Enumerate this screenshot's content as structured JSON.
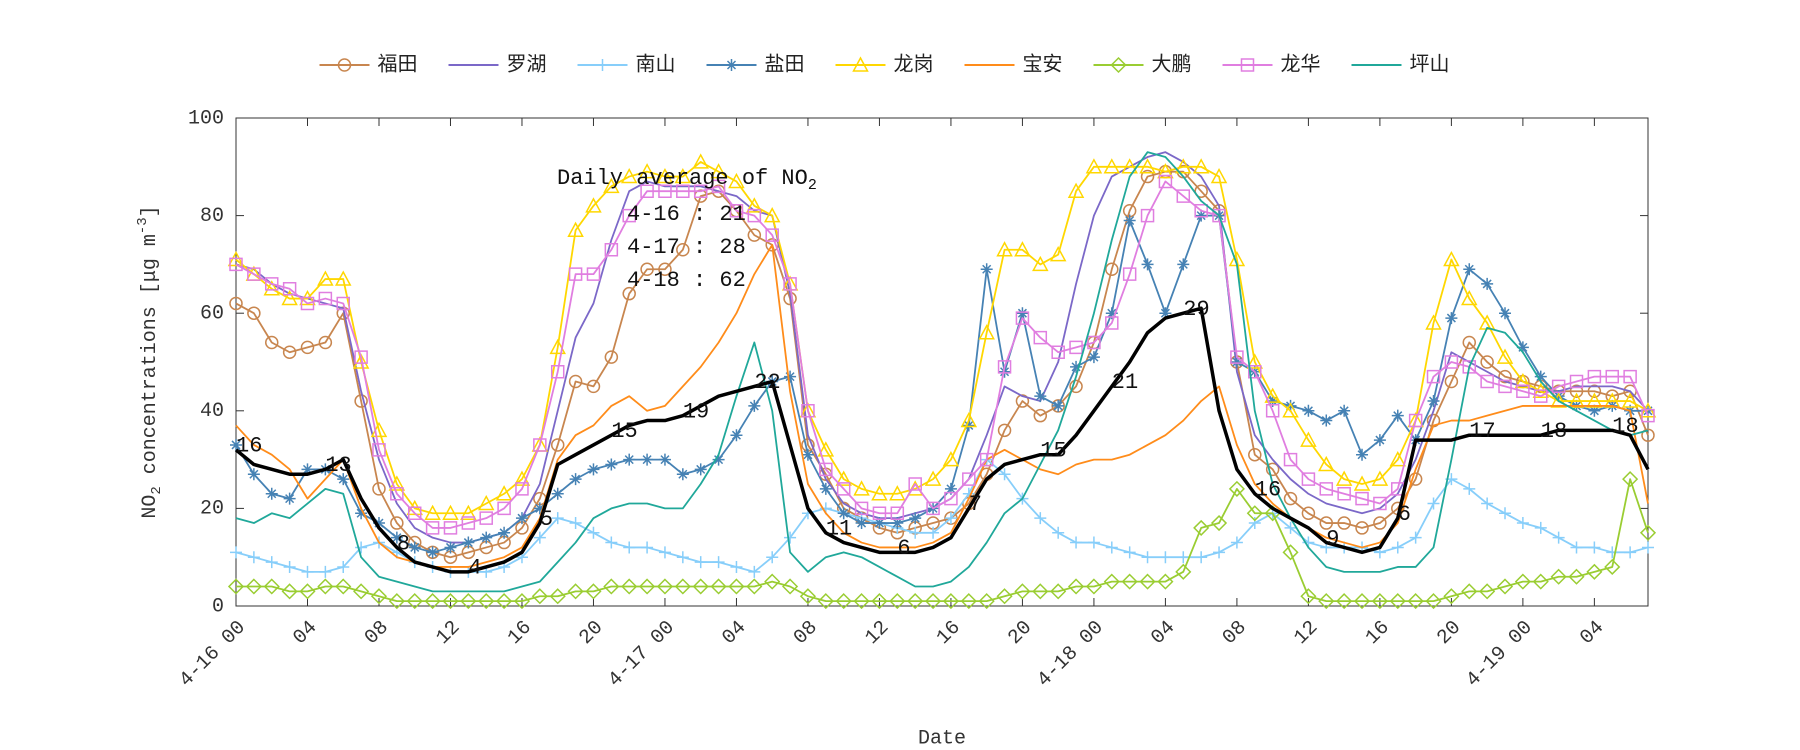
{
  "chart_data": {
    "type": "line",
    "xlabel": "Date",
    "ylabel": {
      "main": "NO",
      "sub": "2",
      "mid": " concentrations [μg m",
      "sup": "-3",
      "end": "]"
    },
    "box_title": {
      "main": "Daily average of NO",
      "sub": "2"
    },
    "box_lines": [
      "4-16 : 21",
      "4-17 : 28",
      "4-18 : 62"
    ],
    "legend": "top",
    "grid": false,
    "xlim": [
      0,
      79
    ],
    "ylim": [
      0,
      100
    ],
    "yticks": [
      0,
      20,
      40,
      60,
      80,
      100
    ],
    "xticks": [
      {
        "value": 0,
        "label": "4-16 00"
      },
      {
        "value": 4,
        "label": "04"
      },
      {
        "value": 8,
        "label": "08"
      },
      {
        "value": 12,
        "label": "12"
      },
      {
        "value": 16,
        "label": "16"
      },
      {
        "value": 20,
        "label": "20"
      },
      {
        "value": 24,
        "label": "4-17 00"
      },
      {
        "value": 28,
        "label": "04"
      },
      {
        "value": 32,
        "label": "08"
      },
      {
        "value": 36,
        "label": "12"
      },
      {
        "value": 40,
        "label": "16"
      },
      {
        "value": 44,
        "label": "20"
      },
      {
        "value": 48,
        "label": "4-18 00"
      },
      {
        "value": 52,
        "label": "04"
      },
      {
        "value": 56,
        "label": "08"
      },
      {
        "value": 60,
        "label": "12"
      },
      {
        "value": 64,
        "label": "16"
      },
      {
        "value": 68,
        "label": "20"
      },
      {
        "value": 72,
        "label": "4-19 00"
      },
      {
        "value": 76,
        "label": "04"
      }
    ],
    "x": [
      0,
      1,
      2,
      3,
      4,
      5,
      6,
      7,
      8,
      9,
      10,
      11,
      12,
      13,
      14,
      15,
      16,
      17,
      18,
      19,
      20,
      21,
      22,
      23,
      24,
      25,
      26,
      27,
      28,
      29,
      30,
      31,
      32,
      33,
      34,
      35,
      36,
      37,
      38,
      39,
      40,
      41,
      42,
      43,
      44,
      45,
      46,
      47,
      48,
      49,
      50,
      51,
      52,
      53,
      54,
      55,
      56,
      57,
      58,
      59,
      60,
      61,
      62,
      63,
      64,
      65,
      66,
      67,
      68,
      69,
      70,
      71,
      72,
      73,
      74,
      75,
      76,
      77,
      78,
      79
    ],
    "series": [
      {
        "name": "福田",
        "color": "#c8864f",
        "marker": "circle",
        "values": [
          62,
          60,
          54,
          52,
          53,
          54,
          60,
          42,
          24,
          17,
          13,
          11,
          10,
          11,
          12,
          13,
          16,
          22,
          33,
          46,
          45,
          51,
          64,
          69,
          69,
          73,
          84,
          85,
          81,
          76,
          74,
          63,
          33,
          27,
          20,
          18,
          16,
          15,
          16,
          17,
          18,
          21,
          27,
          36,
          42,
          39,
          41,
          45,
          54,
          69,
          81,
          88,
          89,
          89,
          85,
          81,
          50,
          31,
          28,
          22,
          19,
          17,
          17,
          16,
          17,
          20,
          26,
          38,
          46,
          54,
          50,
          47,
          46,
          45,
          44,
          44,
          44,
          43,
          44,
          35
        ]
      },
      {
        "name": "罗湖",
        "color": "#7b68c8",
        "marker": "none",
        "values": [
          70,
          69,
          66,
          64,
          63,
          62,
          61,
          44,
          30,
          21,
          16,
          14,
          13,
          13,
          14,
          15,
          18,
          25,
          40,
          55,
          62,
          75,
          85,
          87,
          86,
          86,
          86,
          85,
          84,
          81,
          80,
          64,
          35,
          26,
          21,
          19,
          18,
          18,
          19,
          20,
          22,
          26,
          35,
          45,
          43,
          42,
          50,
          66,
          80,
          88,
          90,
          92,
          93,
          91,
          88,
          82,
          48,
          35,
          30,
          26,
          23,
          21,
          20,
          19,
          20,
          23,
          30,
          40,
          52,
          50,
          48,
          46,
          45,
          44,
          44,
          45,
          45,
          45,
          44,
          40
        ]
      },
      {
        "name": "南山",
        "color": "#87cefa",
        "marker": "plus",
        "values": [
          11,
          10,
          9,
          8,
          7,
          7,
          8,
          12,
          13,
          11,
          9,
          8,
          7,
          7,
          7,
          8,
          10,
          14,
          18,
          17,
          15,
          13,
          12,
          12,
          11,
          10,
          9,
          9,
          8,
          7,
          10,
          14,
          19,
          20,
          19,
          18,
          17,
          16,
          15,
          15,
          18,
          23,
          30,
          27,
          22,
          18,
          15,
          13,
          13,
          12,
          11,
          10,
          10,
          10,
          10,
          11,
          13,
          17,
          19,
          16,
          13,
          12,
          12,
          12,
          11,
          12,
          14,
          21,
          26,
          24,
          21,
          19,
          17,
          16,
          14,
          12,
          12,
          11,
          11,
          12
        ]
      },
      {
        "name": "盐田",
        "color": "#4682b4",
        "marker": "star",
        "values": [
          33,
          27,
          23,
          22,
          28,
          28,
          26,
          19,
          17,
          14,
          12,
          11,
          12,
          13,
          14,
          15,
          18,
          20,
          23,
          26,
          28,
          29,
          30,
          30,
          30,
          27,
          28,
          30,
          35,
          41,
          46,
          47,
          31,
          24,
          19,
          17,
          17,
          17,
          18,
          20,
          24,
          37,
          69,
          48,
          60,
          43,
          41,
          49,
          51,
          60,
          79,
          70,
          60,
          70,
          80,
          80,
          50,
          48,
          42,
          41,
          40,
          38,
          40,
          31,
          34,
          39,
          34,
          42,
          59,
          69,
          66,
          60,
          53,
          47,
          43,
          41,
          40,
          41,
          40,
          40
        ]
      },
      {
        "name": "龙岗",
        "color": "#ffd700",
        "marker": "triangle",
        "values": [
          71,
          68,
          65,
          63,
          63,
          67,
          67,
          50,
          36,
          25,
          20,
          19,
          19,
          19,
          21,
          23,
          26,
          33,
          53,
          77,
          82,
          86,
          88,
          89,
          88,
          88,
          91,
          89,
          87,
          82,
          80,
          66,
          40,
          32,
          26,
          24,
          23,
          23,
          24,
          26,
          30,
          38,
          56,
          73,
          73,
          70,
          72,
          85,
          90,
          90,
          90,
          90,
          89,
          90,
          90,
          88,
          71,
          50,
          43,
          40,
          34,
          29,
          26,
          25,
          26,
          30,
          38,
          58,
          71,
          63,
          58,
          51,
          46,
          44,
          42,
          42,
          42,
          42,
          42,
          40
        ]
      },
      {
        "name": "宝安",
        "color": "#ff8c1a",
        "marker": "none",
        "values": [
          37,
          33,
          31,
          28,
          22,
          26,
          30,
          20,
          13,
          10,
          9,
          8,
          8,
          8,
          9,
          10,
          12,
          18,
          30,
          35,
          37,
          41,
          43,
          40,
          41,
          45,
          49,
          54,
          60,
          68,
          74,
          44,
          25,
          19,
          15,
          13,
          12,
          12,
          12,
          13,
          15,
          22,
          30,
          32,
          30,
          28,
          27,
          29,
          30,
          30,
          31,
          33,
          35,
          38,
          42,
          45,
          33,
          25,
          21,
          18,
          16,
          14,
          13,
          12,
          13,
          17,
          28,
          37,
          38,
          38,
          39,
          40,
          41,
          41,
          41,
          41,
          41,
          41,
          40,
          21
        ]
      },
      {
        "name": "大鹏",
        "color": "#9acd32",
        "marker": "diamond",
        "values": [
          4,
          4,
          4,
          3,
          3,
          4,
          4,
          3,
          2,
          1,
          1,
          1,
          1,
          1,
          1,
          1,
          1,
          2,
          2,
          3,
          3,
          4,
          4,
          4,
          4,
          4,
          4,
          4,
          4,
          4,
          5,
          4,
          2,
          1,
          1,
          1,
          1,
          1,
          1,
          1,
          1,
          1,
          1,
          2,
          3,
          3,
          3,
          4,
          4,
          5,
          5,
          5,
          5,
          7,
          16,
          17,
          24,
          19,
          19,
          11,
          2,
          1,
          1,
          1,
          1,
          1,
          1,
          1,
          2,
          3,
          3,
          4,
          5,
          5,
          6,
          6,
          7,
          8,
          26,
          15
        ]
      },
      {
        "name": "龙华",
        "color": "#e07ee0",
        "marker": "square",
        "values": [
          70,
          68,
          66,
          65,
          62,
          63,
          62,
          51,
          32,
          23,
          19,
          16,
          16,
          17,
          18,
          20,
          24,
          33,
          48,
          68,
          68,
          73,
          80,
          85,
          85,
          85,
          85,
          86,
          81,
          80,
          76,
          66,
          40,
          28,
          24,
          20,
          19,
          19,
          25,
          20,
          22,
          26,
          30,
          49,
          59,
          55,
          52,
          53,
          54,
          58,
          68,
          80,
          87,
          84,
          81,
          80,
          51,
          48,
          40,
          30,
          26,
          24,
          23,
          22,
          21,
          24,
          38,
          47,
          50,
          49,
          46,
          45,
          44,
          43,
          45,
          46,
          47,
          47,
          47,
          39
        ]
      },
      {
        "name": "坪山",
        "color": "#20a89a",
        "marker": "none",
        "values": [
          18,
          17,
          19,
          18,
          21,
          24,
          23,
          10,
          6,
          5,
          4,
          3,
          3,
          3,
          3,
          3,
          4,
          5,
          9,
          13,
          18,
          20,
          21,
          21,
          20,
          20,
          25,
          31,
          43,
          54,
          40,
          11,
          7,
          10,
          11,
          10,
          8,
          6,
          4,
          4,
          5,
          8,
          13,
          19,
          22,
          29,
          36,
          47,
          60,
          75,
          88,
          93,
          92,
          88,
          83,
          80,
          70,
          40,
          25,
          18,
          12,
          8,
          7,
          7,
          7,
          8,
          8,
          12,
          30,
          49,
          57,
          56,
          52,
          46,
          42,
          40,
          38,
          36,
          35,
          36
        ]
      }
    ],
    "mean": {
      "color": "#000000",
      "values": [
        32,
        29,
        28,
        27,
        27,
        28,
        30,
        22,
        16,
        12,
        9,
        8,
        7,
        7,
        8,
        9,
        11,
        17,
        29,
        31,
        33,
        35,
        37,
        38,
        38,
        39,
        41,
        43,
        44,
        45,
        46,
        33,
        20,
        15,
        13,
        12,
        11,
        11,
        11,
        12,
        14,
        20,
        26,
        29,
        30,
        31,
        31,
        35,
        40,
        45,
        50,
        56,
        59,
        60,
        61,
        40,
        28,
        23,
        20,
        18,
        16,
        13,
        12,
        11,
        12,
        18,
        34,
        34,
        34,
        35,
        35,
        35,
        35,
        35,
        36,
        36,
        36,
        36,
        35,
        28
      ]
    },
    "annotations": [
      {
        "x": 0,
        "text": "16"
      },
      {
        "x": 5,
        "text": "13"
      },
      {
        "x": 9,
        "text": "8"
      },
      {
        "x": 13,
        "text": "4"
      },
      {
        "x": 17,
        "text": "5"
      },
      {
        "x": 21,
        "text": "15"
      },
      {
        "x": 25,
        "text": "19"
      },
      {
        "x": 29,
        "text": "22"
      },
      {
        "x": 33,
        "text": "11"
      },
      {
        "x": 37,
        "text": "6"
      },
      {
        "x": 41,
        "text": "7"
      },
      {
        "x": 45,
        "text": "15"
      },
      {
        "x": 49,
        "text": "21"
      },
      {
        "x": 53,
        "text": "29"
      },
      {
        "x": 57,
        "text": "16"
      },
      {
        "x": 61,
        "text": "9"
      },
      {
        "x": 65,
        "text": "6"
      },
      {
        "x": 69,
        "text": "17"
      },
      {
        "x": 73,
        "text": "18"
      },
      {
        "x": 77,
        "text": "18"
      }
    ]
  }
}
